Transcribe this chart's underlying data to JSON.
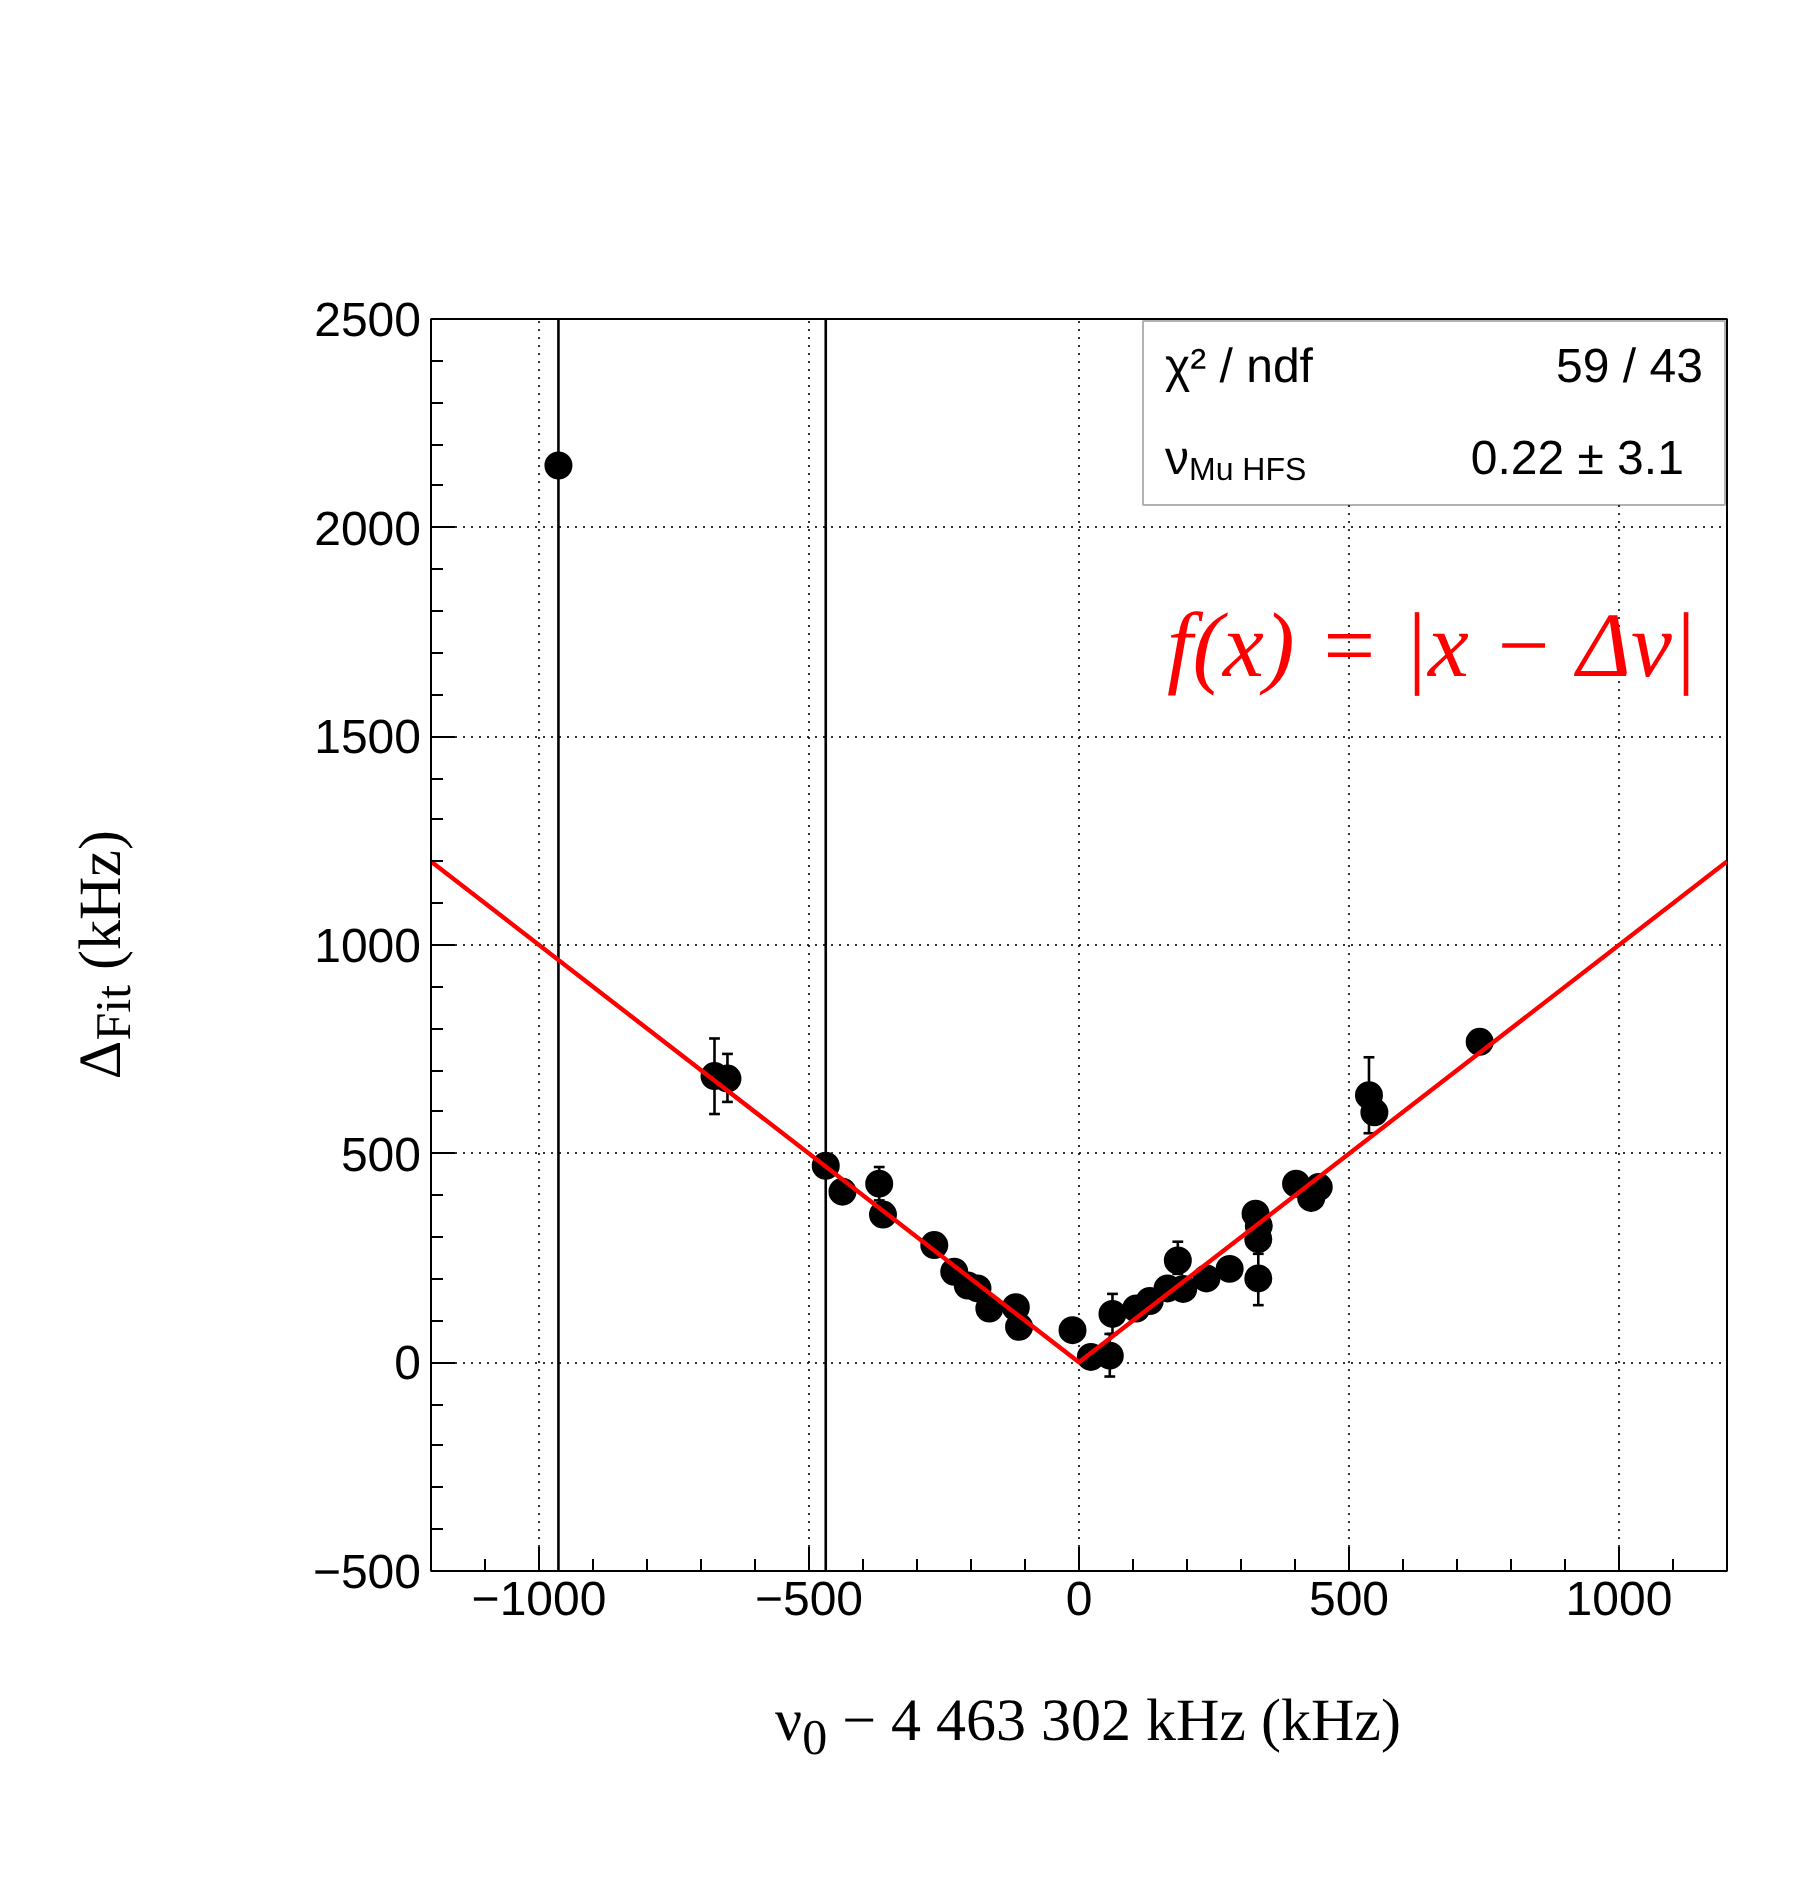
{
  "chart_data": {
    "type": "scatter",
    "xlabel": "ν$_{0}$ − 4 463 302 kHz (kHz)",
    "ylabel": "Δ$_{Fit}$ (kHz)",
    "annotations": [
      "χ² / ndf",
      "59 / 43",
      "ν$_{Mu HFS}$",
      "0.22 ±  3.1"
    ],
    "xlim": [
      -1200,
      1200
    ],
    "ylim": [
      -500,
      2500
    ],
    "xticks": [
      -1000,
      -500,
      0,
      500,
      1000
    ],
    "yticks": [
      -500,
      0,
      500,
      1000,
      1500,
      2000,
      2500
    ],
    "grid": true,
    "marker": "circle",
    "series": [
      {
        "color": "#000000",
        "x": [
          -964,
          -675,
          -651,
          -469,
          -438,
          -370,
          -363,
          -268,
          -231,
          -206,
          -188,
          -166,
          -117,
          -111,
          -12,
          22,
          57,
          62,
          106,
          131,
          164,
          183,
          193,
          236,
          279,
          327,
          333,
          332,
          332,
          402,
          430,
          444,
          537,
          547,
          742
        ],
        "values": [
          2149,
          686,
          680,
          471,
          409,
          428,
          354,
          281,
          217,
          184,
          177,
          129,
          132,
          85,
          77,
          13,
          16,
          116,
          129,
          147,
          177,
          244,
          176,
          201,
          224,
          356,
          327,
          295,
          201,
          428,
          394,
          420,
          640,
          599,
          768
        ],
        "errors": [
          [
            -500,
            2500
          ],
          [
            595,
            776
          ],
          [
            624,
            739
          ],
          [
            -500,
            2500
          ],
          null,
          [
            388,
            468
          ],
          null,
          null,
          null,
          null,
          null,
          null,
          null,
          null,
          null,
          null,
          [
            -34,
            68
          ],
          [
            68,
            164
          ],
          null,
          null,
          null,
          [
            212,
            289
          ],
          null,
          null,
          null,
          null,
          null,
          null,
          [
            137,
            260
          ],
          null,
          null,
          null,
          [
            549,
            731
          ],
          null,
          null
        ]
      },
      {
        "type": "line",
        "name": "f(x) = |x − Δν|",
        "color": "#ff0000",
        "marker": "none",
        "line_style": "solid",
        "x": [
          -1200,
          0,
          1200
        ],
        "values": [
          1200,
          0,
          1200
        ]
      }
    ]
  }
}
